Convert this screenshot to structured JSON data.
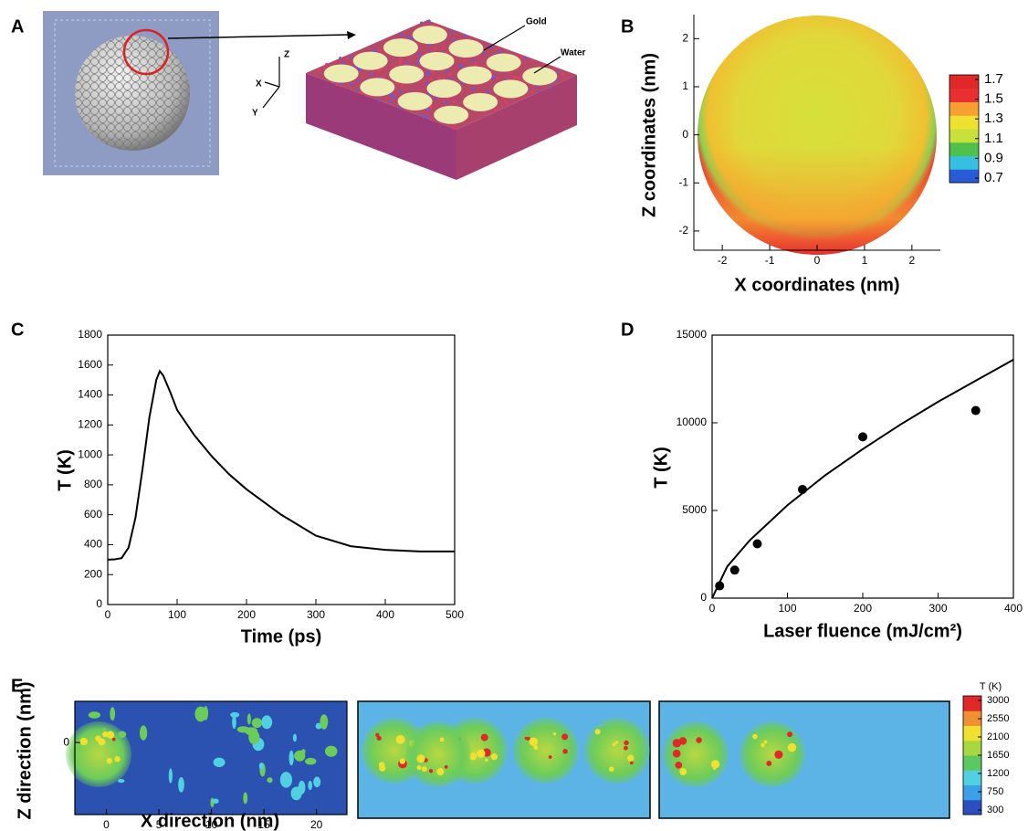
{
  "chart_data": [
    {
      "panel": "A",
      "type": "illustration",
      "labels": [
        "Gold",
        "Water"
      ],
      "axis_labels": [
        "X",
        "Y",
        "Z"
      ]
    },
    {
      "panel": "B",
      "type": "heatmap",
      "xlabel": "X coordinates (nm)",
      "ylabel": "Z coordinates (nm)",
      "xlim": [
        -2.6,
        2.6
      ],
      "ylim": [
        -2.4,
        2.5
      ],
      "xticks": [
        -2,
        -1,
        0,
        1,
        2
      ],
      "yticks": [
        -2,
        -1,
        0,
        1,
        2
      ],
      "colorbar": {
        "ticks": [
          0.7,
          0.9,
          1.1,
          1.3,
          1.5,
          1.7
        ],
        "colors": [
          "#2a5bd7",
          "#35c0e0",
          "#4fc04a",
          "#c8e03a",
          "#f0e030",
          "#f5a030",
          "#e83030",
          "#e02828"
        ]
      }
    },
    {
      "panel": "C",
      "type": "line",
      "xlabel": "Time (ps)",
      "ylabel": "T (K)",
      "xlim": [
        0,
        500
      ],
      "ylim": [
        0,
        1800
      ],
      "xticks": [
        0,
        100,
        200,
        300,
        400,
        500
      ],
      "yticks": [
        0,
        200,
        400,
        600,
        800,
        1000,
        1200,
        1400,
        1600,
        1800
      ],
      "series": [
        {
          "color": "#000000",
          "mode": "line",
          "x": [
            0,
            10,
            20,
            30,
            40,
            50,
            60,
            70,
            75,
            80,
            90,
            100,
            125,
            150,
            175,
            200,
            250,
            300,
            350,
            400,
            450,
            500
          ],
          "values": [
            300,
            302,
            310,
            380,
            580,
            900,
            1250,
            1500,
            1560,
            1530,
            1420,
            1300,
            1130,
            990,
            870,
            770,
            600,
            460,
            390,
            365,
            355,
            355
          ]
        }
      ]
    },
    {
      "panel": "D",
      "type": "scatter",
      "xlabel": "Laser fluence (mJ/cm²)",
      "ylabel": "T (K)",
      "xlim": [
        0,
        400
      ],
      "ylim": [
        0,
        15000
      ],
      "xticks": [
        0,
        100,
        200,
        300,
        400
      ],
      "yticks": [
        0,
        5000,
        10000,
        15000
      ],
      "series": [
        {
          "color": "#000000",
          "mode": "markers",
          "x": [
            10,
            30,
            60,
            120,
            200,
            350
          ],
          "values": [
            700,
            1600,
            3100,
            6200,
            9200,
            10700
          ]
        },
        {
          "color": "#000000",
          "mode": "line",
          "x": [
            0,
            20,
            50,
            100,
            150,
            200,
            250,
            300,
            350,
            400
          ],
          "values": [
            0,
            1800,
            3300,
            5300,
            7000,
            8500,
            9900,
            11200,
            12400,
            13600
          ]
        }
      ]
    },
    {
      "panel": "E",
      "type": "heatmap",
      "xlabel": "X direction (nm)",
      "ylabel": "Z direction (nm)",
      "xlim": [
        -3,
        22.9
      ],
      "ylim": [
        -7,
        4
      ],
      "xticks": [
        0,
        5,
        10,
        15,
        20
      ],
      "yticks": [
        0
      ],
      "colorbar": {
        "title": "T (K)",
        "ticks": [
          300,
          750,
          1200,
          1650,
          2100,
          2550,
          3000
        ],
        "colors": [
          "#2b4fc0",
          "#3aa0e8",
          "#50d0e0",
          "#5cc860",
          "#a8d840",
          "#f0e030",
          "#f09030",
          "#e02828"
        ]
      }
    }
  ]
}
